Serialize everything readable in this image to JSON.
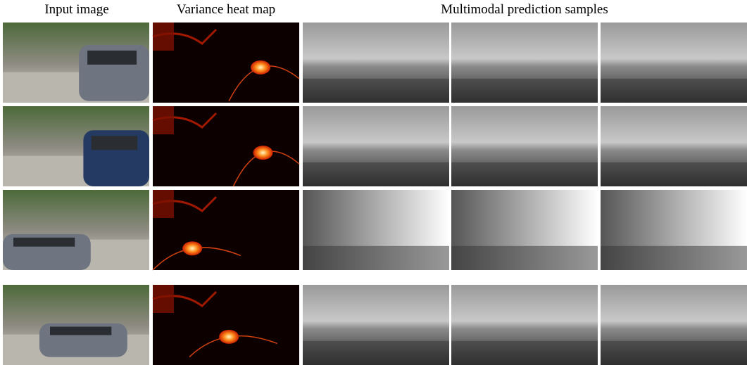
{
  "header": {
    "columns": [
      "Input image",
      "Variance heat map",
      "Multimodal prediction samples"
    ]
  }
}
